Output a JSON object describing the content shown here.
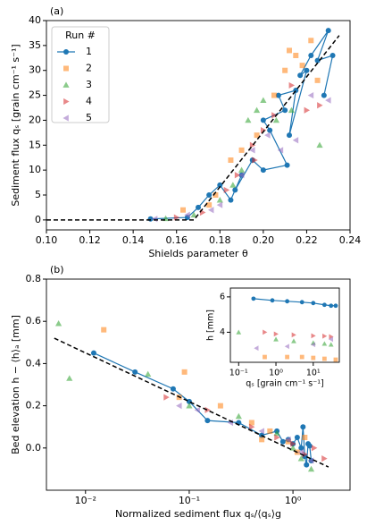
{
  "chart_data": [
    {
      "type": "scatter",
      "panel_label": "(a)",
      "xlabel": "Shields parameter  θ",
      "ylabel": "Sediment flux  qₛ  [grain cm⁻¹ s⁻¹]",
      "xlim": [
        0.1,
        0.24
      ],
      "ylim": [
        -2,
        40
      ],
      "xticks": [
        {
          "value": 0.1,
          "label": "0.10"
        },
        0.12,
        0.14,
        0.16,
        0.18,
        {
          "value": 0.2,
          "label": "0.20"
        },
        0.22,
        0.24
      ],
      "yticks": [
        0,
        5,
        10,
        15,
        20,
        25,
        30,
        35,
        40
      ],
      "legend": "upper left",
      "legend_title": "Run #",
      "series": [
        {
          "name": "1",
          "color": "#1f77b4",
          "marker": "o",
          "line": true,
          "x": [
            0.148,
            0.165,
            0.17,
            0.175,
            0.18,
            0.185,
            0.19,
            0.187,
            0.195,
            0.2,
            0.211,
            0.203,
            0.2,
            0.21,
            0.207,
            0.215,
            0.212,
            0.22,
            0.217,
            0.222,
            0.23,
            0.225,
            0.232,
            0.228
          ],
          "values": [
            0.2,
            0.5,
            2.5,
            5,
            7,
            4,
            9,
            6,
            12,
            10,
            11,
            18,
            20,
            22,
            25,
            26,
            17,
            30,
            29,
            33,
            38,
            32,
            33,
            25
          ]
        },
        {
          "name": "2",
          "color": "#ff7f0e",
          "marker": "s",
          "x": [
            0.163,
            0.178,
            0.175,
            0.185,
            0.19,
            0.197,
            0.205,
            0.21,
            0.215,
            0.222,
            0.218,
            0.212,
            0.225
          ],
          "values": [
            2,
            5,
            3,
            12,
            14,
            17,
            25,
            30,
            33,
            36,
            31,
            34,
            28
          ]
        },
        {
          "name": "3",
          "color": "#2ca02c",
          "marker": "^",
          "x": [
            0.155,
            0.168,
            0.18,
            0.186,
            0.19,
            0.193,
            0.197,
            0.2,
            0.206,
            0.213,
            0.226
          ],
          "values": [
            0.3,
            1,
            4,
            7,
            10,
            20,
            22,
            24,
            20,
            22,
            15
          ]
        },
        {
          "name": "4",
          "color": "#d62728",
          "marker": ">",
          "x": [
            0.16,
            0.172,
            0.183,
            0.188,
            0.195,
            0.196,
            0.2,
            0.205,
            0.213,
            0.22,
            0.226
          ],
          "values": [
            0.5,
            1.5,
            6,
            9,
            15,
            12,
            18,
            21,
            27,
            22,
            23
          ]
        },
        {
          "name": "5",
          "color": "#9467bd",
          "marker": "<",
          "x": [
            0.15,
            0.165,
            0.176,
            0.18,
            0.19,
            0.195,
            0.202,
            0.208,
            0.215,
            0.222,
            0.23
          ],
          "values": [
            0.2,
            1,
            2,
            3,
            9,
            14,
            17,
            14,
            16,
            25,
            24
          ]
        }
      ],
      "fit_line": {
        "x": [
          0.1,
          0.168,
          0.235
        ],
        "values": [
          0,
          0,
          37
        ]
      }
    },
    {
      "type": "scatter",
      "panel_label": "(b)",
      "xlabel": "Normalized sediment flux  qₛ/⟨qₛ⟩g",
      "ylabel": "Bed elevation  h − ⟨h⟩ₐ  [mm]",
      "xlog": true,
      "xlim": [
        0.0042,
        3.55
      ],
      "ylim": [
        -0.2,
        0.8
      ],
      "xticks": [
        {
          "value": 0.01,
          "label": "10⁻²"
        },
        {
          "value": 0.1,
          "label": "10⁻¹"
        },
        {
          "value": 1,
          "label": "10⁰"
        }
      ],
      "yticks": [
        {
          "value": 0,
          "label": "0.0"
        },
        0.2,
        0.4,
        0.6,
        0.8
      ],
      "series": [
        {
          "color": "#1f77b4",
          "marker": "o",
          "line": true,
          "x": [
            0.012,
            0.03,
            0.07,
            0.1,
            0.15,
            0.3,
            0.5,
            0.7,
            0.8,
            0.9,
            1.0,
            1.1,
            1.2,
            1.25,
            1.3,
            1.35,
            1.4,
            1.45,
            1.5
          ],
          "values": [
            0.45,
            0.36,
            0.28,
            0.22,
            0.13,
            0.12,
            0.06,
            0.08,
            0.03,
            0.04,
            0.02,
            0.05,
            0.0,
            0.1,
            -0.04,
            -0.08,
            0.02,
            0.01,
            -0.06
          ]
        },
        {
          "color": "#ff7f0e",
          "marker": "s",
          "x": [
            0.015,
            0.09,
            0.08,
            0.2,
            0.4,
            0.5,
            0.6,
            0.9,
            1.1,
            1.3
          ],
          "values": [
            0.56,
            0.36,
            0.24,
            0.2,
            0.12,
            0.04,
            0.08,
            0.03,
            -0.02,
            0.05
          ]
        },
        {
          "color": "#2ca02c",
          "marker": "^",
          "x": [
            0.0055,
            0.007,
            0.04,
            0.1,
            0.3,
            0.7,
            1.0,
            1.2,
            1.5
          ],
          "values": [
            0.59,
            0.33,
            0.35,
            0.2,
            0.15,
            0.07,
            0.0,
            -0.05,
            -0.1
          ]
        },
        {
          "color": "#d62728",
          "marker": ">",
          "x": [
            0.06,
            0.15,
            0.4,
            0.7,
            1.0,
            1.3,
            1.6,
            2.0
          ],
          "values": [
            0.24,
            0.18,
            0.1,
            0.05,
            0.02,
            -0.03,
            0.0,
            -0.05
          ]
        },
        {
          "color": "#9467bd",
          "marker": "<",
          "x": [
            0.08,
            0.12,
            0.25,
            0.5,
            0.9,
            1.2,
            1.5
          ],
          "values": [
            0.2,
            0.18,
            0.12,
            0.08,
            0.04,
            -0.02,
            -0.06
          ]
        }
      ],
      "fit_line": {
        "x": [
          0.005,
          2.2
        ],
        "values": [
          0.52,
          -0.09
        ]
      }
    },
    {
      "type": "scatter",
      "xlabel": "qₛ  [grain cm⁻¹ s⁻¹]",
      "ylabel": "h  [mm]",
      "xlog": true,
      "xlim": [
        0.06,
        50
      ],
      "ylim": [
        2.3,
        6.5
      ],
      "xticks": [
        {
          "value": 0.1,
          "label": "10⁻¹"
        },
        {
          "value": 1,
          "label": "10⁰"
        },
        {
          "value": 10,
          "label": "10¹"
        }
      ],
      "yticks": [
        4,
        6
      ],
      "series": [
        {
          "color": "#1f77b4",
          "marker": "o",
          "line": true,
          "x": [
            0.25,
            0.8,
            2,
            5,
            10,
            20,
            30,
            40
          ],
          "values": [
            5.9,
            5.8,
            5.75,
            5.7,
            5.65,
            5.55,
            5.5,
            5.5
          ]
        },
        {
          "color": "#ff7f0e",
          "marker": "s",
          "x": [
            0.5,
            2,
            5,
            10,
            20,
            40
          ],
          "values": [
            2.6,
            2.6,
            2.6,
            2.55,
            2.5,
            2.45
          ]
        },
        {
          "color": "#2ca02c",
          "marker": "^",
          "x": [
            0.1,
            1,
            3,
            10,
            20,
            30
          ],
          "values": [
            4.0,
            3.6,
            3.5,
            3.4,
            3.35,
            3.3
          ]
        },
        {
          "color": "#d62728",
          "marker": ">",
          "x": [
            0.5,
            1,
            3,
            10,
            20,
            30
          ],
          "values": [
            4.0,
            3.9,
            3.85,
            3.8,
            3.78,
            3.75
          ]
        },
        {
          "color": "#9467bd",
          "marker": "<",
          "x": [
            0.3,
            2,
            10,
            30
          ],
          "values": [
            3.1,
            3.2,
            3.3,
            3.6
          ]
        }
      ]
    }
  ]
}
